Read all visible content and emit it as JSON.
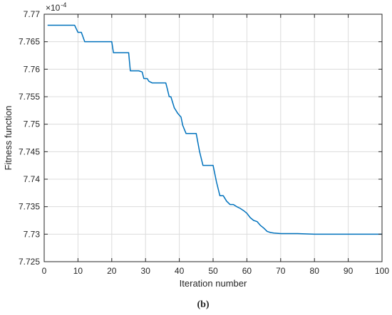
{
  "figure": {
    "caption": "(b)"
  },
  "chart_data": {
    "type": "line",
    "title": "",
    "xlabel": "Iteration number",
    "ylabel": "Fitness function",
    "y_exponent_label": "×10",
    "y_exponent_power": "-4",
    "xlim": [
      0,
      100
    ],
    "ylim": [
      7.725,
      7.77
    ],
    "xticks": [
      "0",
      "10",
      "20",
      "30",
      "40",
      "50",
      "60",
      "70",
      "80",
      "90",
      "100"
    ],
    "yticks": [
      "7.725",
      "7.73",
      "7.735",
      "7.74",
      "7.745",
      "7.75",
      "7.755",
      "7.76",
      "7.765",
      "7.77"
    ],
    "grid": true,
    "line_color": "#0072BD",
    "series": [
      {
        "x": [
          1,
          9,
          10,
          11,
          12,
          20,
          20.5,
          25,
          25.5,
          28,
          29,
          29.5,
          30.5,
          31,
          32,
          33,
          36,
          36.5,
          37,
          37.5,
          38,
          38.5,
          39.5,
          40.5,
          41,
          42,
          45,
          46,
          47,
          50,
          51,
          52,
          53,
          54,
          55,
          56,
          57,
          58,
          59,
          60,
          61,
          62,
          63,
          64,
          65,
          66,
          67,
          68,
          70,
          75,
          80,
          90,
          100
        ],
        "y": [
          7.768,
          7.768,
          7.7667,
          7.7667,
          7.765,
          7.765,
          7.763,
          7.763,
          7.7597,
          7.7597,
          7.7595,
          7.7583,
          7.7583,
          7.7578,
          7.7575,
          7.7575,
          7.7575,
          7.7563,
          7.755,
          7.755,
          7.754,
          7.753,
          7.752,
          7.7513,
          7.7498,
          7.7483,
          7.7483,
          7.745,
          7.7425,
          7.7425,
          7.7395,
          7.737,
          7.737,
          7.736,
          7.7354,
          7.7354,
          7.735,
          7.7347,
          7.7343,
          7.7338,
          7.733,
          7.7325,
          7.7323,
          7.7316,
          7.7311,
          7.7305,
          7.7303,
          7.7302,
          7.7301,
          7.7301,
          7.73,
          7.73,
          7.73
        ]
      }
    ]
  }
}
